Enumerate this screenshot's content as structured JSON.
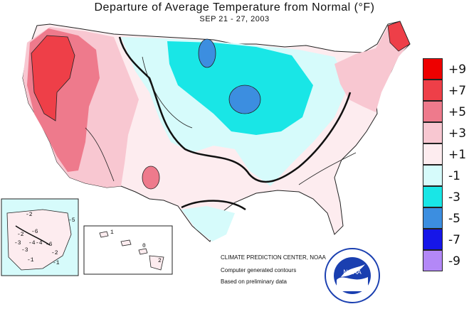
{
  "header": {
    "title": "Departure of Average Temperature from Normal (°F)",
    "subtitle": "SEP 21 - 27, 2003"
  },
  "legend": [
    {
      "label": "+9",
      "color": "#ee0000"
    },
    {
      "label": "+7",
      "color": "#ee3f48"
    },
    {
      "label": "+5",
      "color": "#ee7a8c"
    },
    {
      "label": "+3",
      "color": "#f8c7d1"
    },
    {
      "label": "+1",
      "color": "#fdecef"
    },
    {
      "label": "-1",
      "color": "#d6fbfb"
    },
    {
      "label": "-3",
      "color": "#19e6e6"
    },
    {
      "label": "-5",
      "color": "#3c8ee0"
    },
    {
      "label": "-7",
      "color": "#1616e8"
    },
    {
      "label": "-9",
      "color": "#b388f7"
    }
  ],
  "credits": {
    "center": "CLIMATE PREDICTION CENTER, NOAA",
    "line1": "Computer generated contours",
    "line2": "Based on preliminary data"
  },
  "logo": {
    "text": "NOAA",
    "ring_text": "NATIONAL OCEANIC AND ATMOSPHERIC ADMINISTRATION · U.S. DEPARTMENT OF COMMERCE"
  },
  "alaska_labels": [
    "-2",
    "-5",
    "-6",
    "-4",
    "-4",
    "-3",
    "-3",
    "-6",
    "-2",
    "-2",
    "-1",
    "-1"
  ],
  "hawaii_labels": [
    "1",
    "0",
    "2"
  ]
}
